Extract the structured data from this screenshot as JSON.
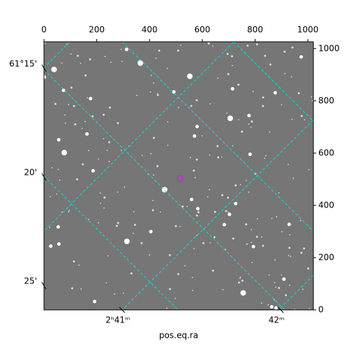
{
  "chart_data": {
    "type": "image",
    "xlabel": "pos.eq.ra",
    "xlim": [
      0,
      1021
    ],
    "ylim": [
      0,
      1026
    ],
    "xticks": [
      0,
      200,
      400,
      600,
      800,
      1000
    ],
    "yticks": [
      0,
      200,
      400,
      600,
      800,
      1000
    ],
    "lat_ticks": [
      {
        "value": 925,
        "label": "61°15'"
      },
      {
        "value": 509,
        "label": "20'"
      },
      {
        "value": 93,
        "label": "25'"
      }
    ],
    "lon_ticks": [
      {
        "value": 296,
        "label": "2ʰ41ᵐ"
      },
      {
        "value": 897,
        "label": "42ᵐ"
      }
    ],
    "grid_color": "#00e5e5"
  }
}
